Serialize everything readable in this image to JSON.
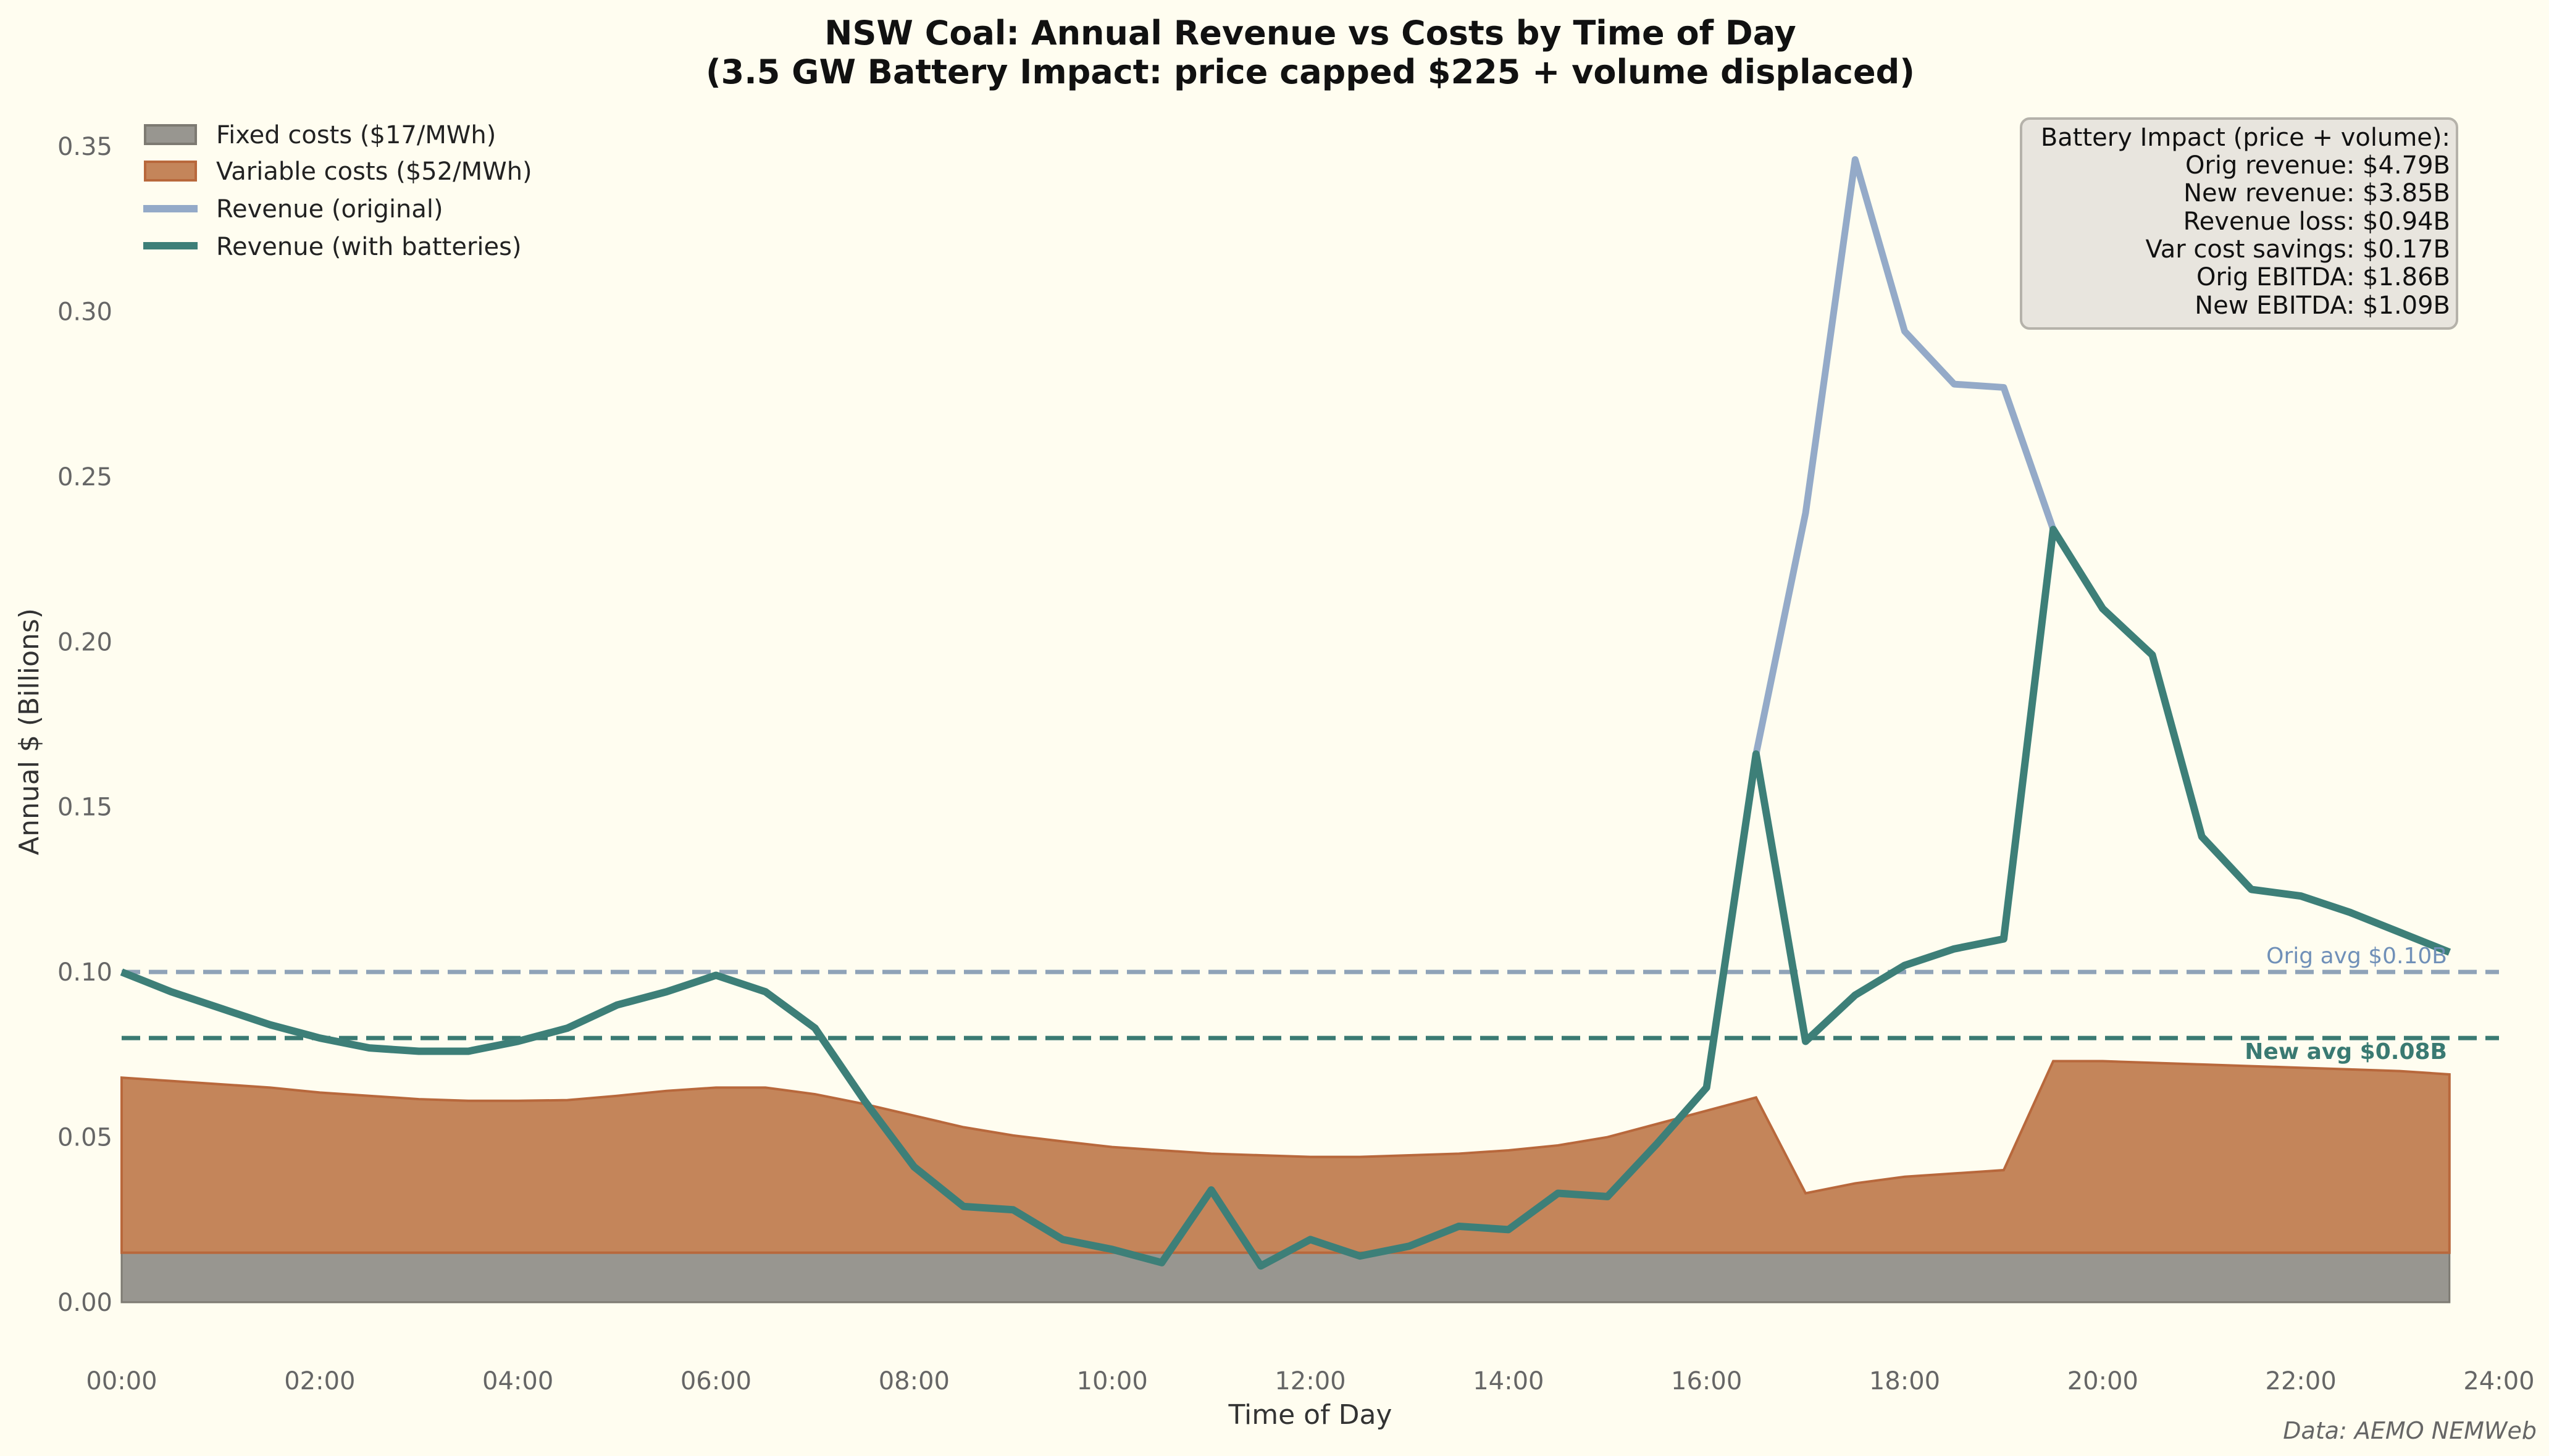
{
  "chart_data": {
    "type": "line",
    "title": "NSW Coal: Annual Revenue vs Costs by Time of Day",
    "subtitle": "(3.5 GW Battery Impact: price capped $225 + volume displaced)",
    "xlabel": "Time of Day",
    "ylabel": "Annual $ (Billions)",
    "xlim": [
      0,
      24
    ],
    "ylim": [
      -0.015,
      0.37
    ],
    "x_ticks": [
      "00:00",
      "02:00",
      "04:00",
      "06:00",
      "08:00",
      "10:00",
      "12:00",
      "14:00",
      "16:00",
      "18:00",
      "20:00",
      "22:00",
      "24:00"
    ],
    "y_ticks": [
      "0.00",
      "0.05",
      "0.10",
      "0.15",
      "0.20",
      "0.25",
      "0.30",
      "0.35"
    ],
    "grid": false,
    "legend_placement": "top-left",
    "x_hours": [
      0,
      0.5,
      1,
      1.5,
      2,
      2.5,
      3,
      3.5,
      4,
      4.5,
      5,
      5.5,
      6,
      6.5,
      7,
      7.5,
      8,
      8.5,
      9,
      9.5,
      10,
      10.5,
      11,
      11.5,
      12,
      12.5,
      13,
      13.5,
      14,
      14.5,
      15,
      15.5,
      16,
      16.5,
      17,
      17.5,
      18,
      18.5,
      19,
      19.5,
      20,
      20.5,
      21,
      21.5,
      22,
      22.5,
      23,
      23.5
    ],
    "series": [
      {
        "name": "Fixed costs ($17/MWh)",
        "kind": "area",
        "color": "#989690",
        "edge": "#7d7a72",
        "values": [
          0.015,
          0.015,
          0.015,
          0.015,
          0.015,
          0.015,
          0.015,
          0.015,
          0.015,
          0.015,
          0.015,
          0.015,
          0.015,
          0.015,
          0.015,
          0.015,
          0.015,
          0.015,
          0.015,
          0.015,
          0.015,
          0.015,
          0.015,
          0.015,
          0.015,
          0.015,
          0.015,
          0.015,
          0.015,
          0.015,
          0.015,
          0.015,
          0.015,
          0.015,
          0.015,
          0.015,
          0.015,
          0.015,
          0.015,
          0.015,
          0.015,
          0.015,
          0.015,
          0.015,
          0.015,
          0.015,
          0.015,
          0.015
        ]
      },
      {
        "name": "Variable costs ($52/MWh)",
        "kind": "area_stacked_total",
        "color": "#c4855a",
        "edge": "#b8683c",
        "values": [
          0.068,
          0.067,
          0.066,
          0.065,
          0.0635,
          0.0625,
          0.0615,
          0.061,
          0.061,
          0.0612,
          0.0625,
          0.064,
          0.065,
          0.065,
          0.063,
          0.06,
          0.0565,
          0.053,
          0.0505,
          0.0487,
          0.047,
          0.046,
          0.045,
          0.0445,
          0.044,
          0.044,
          0.0445,
          0.045,
          0.046,
          0.0475,
          0.05,
          0.054,
          0.058,
          0.062,
          0.033,
          0.036,
          0.038,
          0.039,
          0.04,
          0.073,
          0.073,
          0.0725,
          0.072,
          0.0715,
          0.071,
          0.0705,
          0.07,
          0.069
        ]
      },
      {
        "name": "Revenue (original)",
        "kind": "line",
        "color": "#94aac8",
        "values": [
          0.1,
          0.094,
          0.089,
          0.084,
          0.08,
          0.077,
          0.076,
          0.076,
          0.079,
          0.083,
          0.09,
          0.094,
          0.099,
          0.094,
          0.083,
          0.061,
          0.041,
          0.029,
          0.028,
          0.019,
          0.016,
          0.012,
          0.034,
          0.011,
          0.019,
          0.014,
          0.017,
          0.023,
          0.022,
          0.033,
          0.032,
          0.048,
          0.065,
          0.166,
          0.239,
          0.346,
          0.294,
          0.278,
          0.277,
          0.234,
          0.21,
          0.196,
          0.141,
          0.125,
          0.123,
          0.118,
          0.112,
          0.106
        ]
      },
      {
        "name": "Revenue (with batteries)",
        "kind": "line",
        "color": "#3d7f78",
        "values": [
          0.1,
          0.094,
          0.089,
          0.084,
          0.08,
          0.077,
          0.076,
          0.076,
          0.079,
          0.083,
          0.09,
          0.094,
          0.099,
          0.094,
          0.083,
          0.061,
          0.041,
          0.029,
          0.028,
          0.019,
          0.016,
          0.012,
          0.034,
          0.011,
          0.019,
          0.014,
          0.017,
          0.023,
          0.022,
          0.033,
          0.032,
          0.048,
          0.065,
          0.166,
          0.079,
          0.093,
          0.102,
          0.107,
          0.11,
          0.234,
          0.21,
          0.196,
          0.141,
          0.125,
          0.123,
          0.118,
          0.112,
          0.106
        ]
      }
    ],
    "reference_lines": [
      {
        "label": "Orig avg $0.10B",
        "value": 0.1,
        "color": "#8fa3b8",
        "label_color": "#7090b8"
      },
      {
        "label": "New avg $0.08B",
        "value": 0.08,
        "color": "#3a7a72",
        "label_color": "#3a7a72"
      }
    ],
    "annotation_box": {
      "lines": [
        "Battery Impact (price + volume):",
        "Orig revenue: $4.79B",
        "New revenue: $3.85B",
        "Revenue loss: $0.94B",
        "Var cost savings: $0.17B",
        "Orig EBITDA: $1.86B",
        "New EBITDA: $1.09B"
      ]
    },
    "source": "Data: AEMO NEMWeb"
  }
}
